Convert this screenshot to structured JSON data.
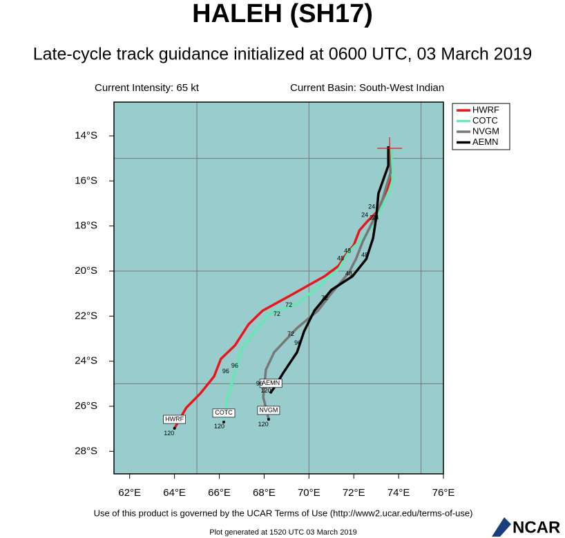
{
  "chart_data": {
    "type": "line",
    "title": "HALEH (SH17)",
    "subtitle": "Late-cycle track guidance initialized at 0600 UTC, 03 March 2019",
    "intensity_note": "Current Intensity: 65 kt",
    "basin_note": "Current Basin: South-West Indian",
    "footer": "Use of this product is governed by the UCAR Terms of Use (http://www2.ucar.edu/terms-of-use)",
    "generated": "Plot generated at 1520 UTC   03 March 2019",
    "logo": "NCAR",
    "background": "#99cccc",
    "xlim": [
      61.3,
      76
    ],
    "ylim": [
      -29,
      -12.5
    ],
    "xticks": [
      {
        "value": 62,
        "label": "62°E"
      },
      {
        "value": 64,
        "label": "64°E"
      },
      {
        "value": 66,
        "label": "66°E"
      },
      {
        "value": 68,
        "label": "68°E"
      },
      {
        "value": 70,
        "label": "70°E"
      },
      {
        "value": 72,
        "label": "72°E"
      },
      {
        "value": 74,
        "label": "74°E"
      },
      {
        "value": 76,
        "label": "76°E"
      }
    ],
    "yticks": [
      {
        "value": -14,
        "label": "14°S"
      },
      {
        "value": -16,
        "label": "16°S"
      },
      {
        "value": -18,
        "label": "18°S"
      },
      {
        "value": -20,
        "label": "20°S"
      },
      {
        "value": -22,
        "label": "22°S"
      },
      {
        "value": -24,
        "label": "24°S"
      },
      {
        "value": -26,
        "label": "26°S"
      },
      {
        "value": -28,
        "label": "28°S"
      }
    ],
    "grid_x": [
      65,
      70,
      75
    ],
    "grid_y": [
      -15,
      -20,
      -25
    ],
    "legend": "upper right",
    "current_position": {
      "x": 73.6,
      "y": -14.55
    },
    "series": [
      {
        "name": "HWRF",
        "color": "#e8161b",
        "x": [
          73.67,
          73.67,
          73.42,
          73.1,
          72.6,
          72.25,
          72.0,
          71.63,
          71.32,
          70.7,
          69.16,
          67.93,
          67.3,
          66.7,
          66.07,
          65.77,
          65.15,
          64.53,
          64.0
        ],
        "y": [
          -14.55,
          -15.78,
          -16.6,
          -17.3,
          -17.8,
          -18.2,
          -18.85,
          -19.3,
          -19.77,
          -20.23,
          -21.09,
          -21.76,
          -22.37,
          -23.3,
          -23.9,
          -24.67,
          -25.44,
          -26.06,
          -26.98
        ]
      },
      {
        "name": "COTC",
        "color": "#66e8b4",
        "x": [
          73.67,
          73.73,
          73.33,
          72.86,
          72.4,
          71.78,
          71.32,
          70.24,
          69.47,
          68.23,
          67.6,
          67.0,
          66.78,
          66.38,
          66.2
        ],
        "y": [
          -14.55,
          -16.08,
          -17.0,
          -17.93,
          -18.54,
          -19.15,
          -19.92,
          -20.84,
          -21.45,
          -21.91,
          -22.68,
          -23.45,
          -24.21,
          -25.6,
          -26.7
        ]
      },
      {
        "name": "NVGM",
        "color": "#777777",
        "x": [
          73.57,
          73.64,
          73.27,
          72.86,
          72.4,
          72.1,
          71.78,
          71.0,
          70.4,
          69.47,
          68.45,
          68.08,
          67.96,
          68.08,
          68.2
        ],
        "y": [
          -14.49,
          -15.63,
          -16.85,
          -17.77,
          -18.69,
          -19.46,
          -20.07,
          -20.99,
          -21.76,
          -22.53,
          -23.6,
          -24.37,
          -25.6,
          -26.06,
          -26.58
        ]
      },
      {
        "name": "AEMN",
        "color": "#000000",
        "x": [
          73.54,
          73.54,
          73.1,
          73.0,
          72.86,
          72.56,
          71.94,
          71.0,
          70.24,
          69.78,
          69.47,
          68.85,
          68.48,
          68.3
        ],
        "y": [
          -14.46,
          -15.32,
          -16.55,
          -17.62,
          -18.54,
          -19.46,
          -20.23,
          -20.84,
          -21.76,
          -22.68,
          -23.6,
          -24.52,
          -25.13,
          -25.38
        ]
      }
    ],
    "annotations": [
      {
        "text": "24",
        "x": 72.49,
        "y": -17.53
      },
      {
        "text": "48",
        "x": 71.41,
        "y": -19.46
      },
      {
        "text": "72",
        "x": 68.57,
        "y": -21.91
      },
      {
        "text": "96",
        "x": 66.29,
        "y": -24.46
      },
      {
        "text": "120",
        "x": 63.76,
        "y": -27.22
      },
      {
        "text": "24",
        "x": 72.86,
        "y": -17.65
      },
      {
        "text": "48",
        "x": 71.72,
        "y": -19.12
      },
      {
        "text": "72",
        "x": 69.1,
        "y": -21.52
      },
      {
        "text": "96",
        "x": 66.69,
        "y": -24.21
      },
      {
        "text": "120",
        "x": 66.0,
        "y": -26.91
      },
      {
        "text": "24",
        "x": 72.8,
        "y": -17.16
      },
      {
        "text": "48",
        "x": 71.78,
        "y": -20.13
      },
      {
        "text": "72",
        "x": 69.19,
        "y": -22.8
      },
      {
        "text": "96",
        "x": 67.8,
        "y": -25.01
      },
      {
        "text": "120",
        "x": 67.96,
        "y": -26.82
      },
      {
        "text": "24",
        "x": 72.96,
        "y": -17.65
      },
      {
        "text": "48",
        "x": 72.49,
        "y": -19.3
      },
      {
        "text": "72",
        "x": 70.7,
        "y": -21.21
      },
      {
        "text": "96",
        "x": 69.5,
        "y": -23.2
      },
      {
        "text": "120",
        "x": 68.08,
        "y": -25.32
      }
    ]
  }
}
